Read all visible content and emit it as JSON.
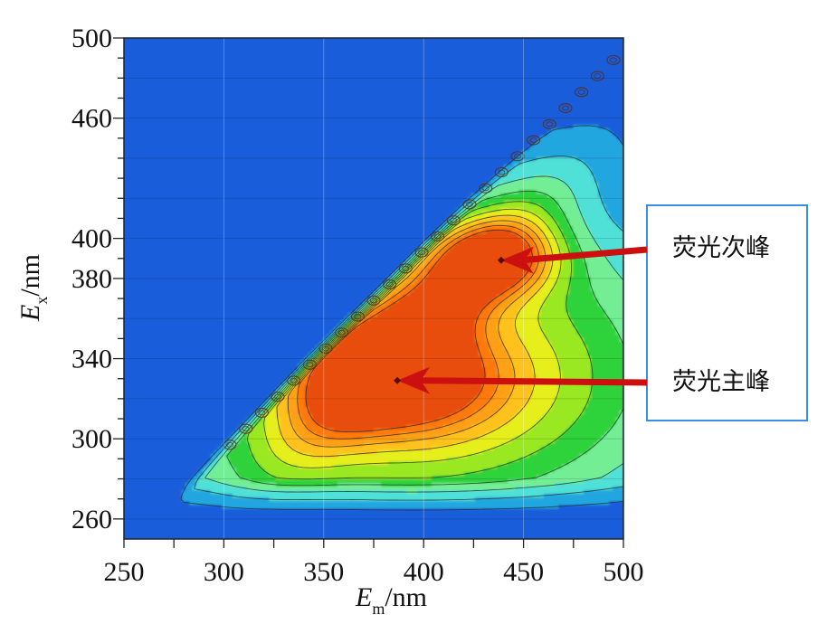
{
  "chart_data": {
    "type": "heatmap",
    "subtype": "contour",
    "title": "",
    "xlabel": {
      "main": "E",
      "sub": "m",
      "unit": "/nm"
    },
    "ylabel": {
      "main": "E",
      "sub": "x",
      "unit": "/nm"
    },
    "xlim": [
      250,
      500
    ],
    "ylim": [
      250,
      500
    ],
    "x_ticks": [
      250,
      300,
      350,
      400,
      450,
      500
    ],
    "y_ticks": [
      260,
      300,
      340,
      380,
      400,
      460,
      500
    ],
    "background_color": "#1a5ddb",
    "colormap": [
      "#1a5ddb",
      "#23a6e0",
      "#4fe0d8",
      "#73ee95",
      "#2fd23a",
      "#9ae824",
      "#e6ee1a",
      "#ffc21e",
      "#ffa017",
      "#ff7a10",
      "#e84e0a"
    ],
    "scatter_line": {
      "description": "Rayleigh scatter diagonal",
      "from": [
        250,
        250
      ],
      "to": [
        500,
        500
      ]
    },
    "peaks": [
      {
        "label": "荧光主峰",
        "em": 385,
        "ex": 330
      },
      {
        "label": "荧光次峰",
        "em": 437,
        "ex": 390
      }
    ],
    "arrow_color": "#cc1010",
    "annotation_box_border": "#3a8ee8"
  }
}
